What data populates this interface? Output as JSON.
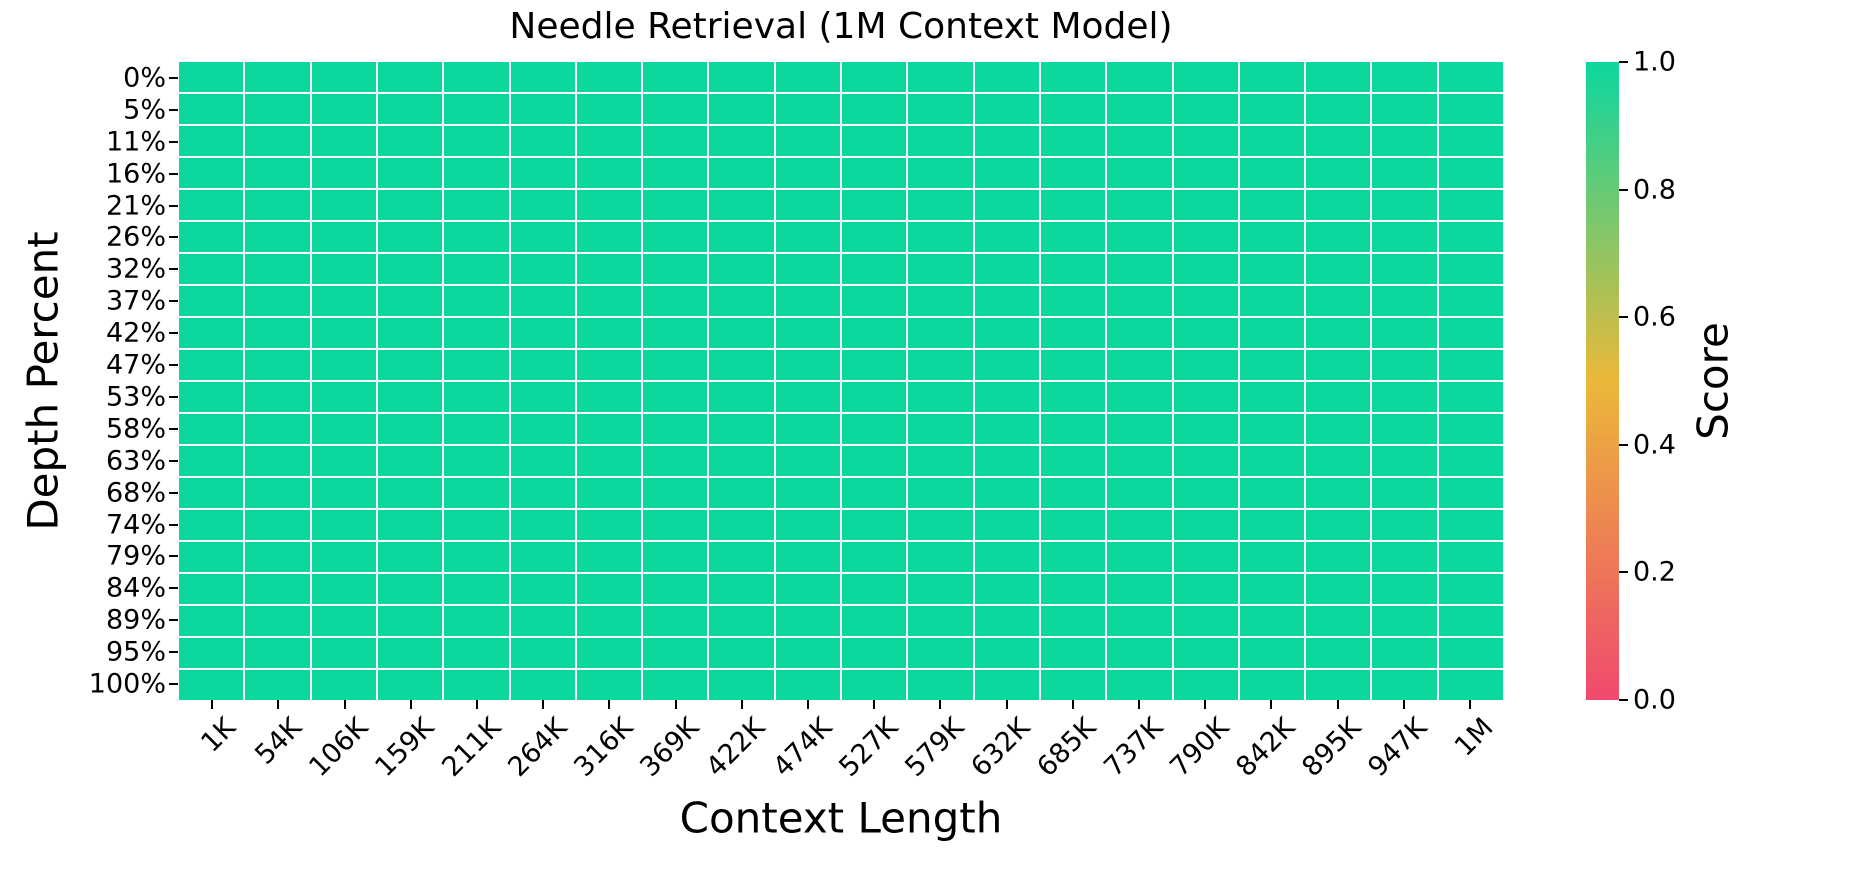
{
  "figure": {
    "background": "#ffffff",
    "text_color": "#000000",
    "grid_line_color": "#ffffff"
  },
  "chart_data": {
    "type": "heatmap",
    "title": "Needle Retrieval (1M Context Model)",
    "xlabel": "Context Length",
    "ylabel": "Depth Percent",
    "x_ticklabels": [
      "1K",
      "54K",
      "106K",
      "159K",
      "211K",
      "264K",
      "316K",
      "369K",
      "422K",
      "474K",
      "527K",
      "579K",
      "632K",
      "685K",
      "737K",
      "790K",
      "842K",
      "895K",
      "947K",
      "1M"
    ],
    "y_ticklabels": [
      "0%",
      "5%",
      "11%",
      "16%",
      "21%",
      "26%",
      "32%",
      "37%",
      "42%",
      "47%",
      "53%",
      "58%",
      "63%",
      "68%",
      "74%",
      "79%",
      "84%",
      "89%",
      "95%",
      "100%"
    ],
    "values": [
      [
        1.0,
        1.0,
        1.0,
        1.0,
        1.0,
        1.0,
        1.0,
        1.0,
        1.0,
        1.0,
        1.0,
        1.0,
        1.0,
        1.0,
        1.0,
        1.0,
        1.0,
        1.0,
        1.0,
        1.0
      ],
      [
        1.0,
        1.0,
        1.0,
        1.0,
        1.0,
        1.0,
        1.0,
        1.0,
        1.0,
        1.0,
        1.0,
        1.0,
        1.0,
        1.0,
        1.0,
        1.0,
        1.0,
        1.0,
        1.0,
        1.0
      ],
      [
        1.0,
        1.0,
        1.0,
        1.0,
        1.0,
        1.0,
        1.0,
        1.0,
        1.0,
        1.0,
        1.0,
        1.0,
        1.0,
        1.0,
        1.0,
        1.0,
        1.0,
        1.0,
        1.0,
        1.0
      ],
      [
        1.0,
        1.0,
        1.0,
        1.0,
        1.0,
        1.0,
        1.0,
        1.0,
        1.0,
        1.0,
        1.0,
        1.0,
        1.0,
        1.0,
        1.0,
        1.0,
        1.0,
        1.0,
        1.0,
        1.0
      ],
      [
        1.0,
        1.0,
        1.0,
        1.0,
        1.0,
        1.0,
        1.0,
        1.0,
        1.0,
        1.0,
        1.0,
        1.0,
        1.0,
        1.0,
        1.0,
        1.0,
        1.0,
        1.0,
        1.0,
        1.0
      ],
      [
        1.0,
        1.0,
        1.0,
        1.0,
        1.0,
        1.0,
        1.0,
        1.0,
        1.0,
        1.0,
        1.0,
        1.0,
        1.0,
        1.0,
        1.0,
        1.0,
        1.0,
        1.0,
        1.0,
        1.0
      ],
      [
        1.0,
        1.0,
        1.0,
        1.0,
        1.0,
        1.0,
        1.0,
        1.0,
        1.0,
        1.0,
        1.0,
        1.0,
        1.0,
        1.0,
        1.0,
        1.0,
        1.0,
        1.0,
        1.0,
        1.0
      ],
      [
        1.0,
        1.0,
        1.0,
        1.0,
        1.0,
        1.0,
        1.0,
        1.0,
        1.0,
        1.0,
        1.0,
        1.0,
        1.0,
        1.0,
        1.0,
        1.0,
        1.0,
        1.0,
        1.0,
        1.0
      ],
      [
        1.0,
        1.0,
        1.0,
        1.0,
        1.0,
        1.0,
        1.0,
        1.0,
        1.0,
        1.0,
        1.0,
        1.0,
        1.0,
        1.0,
        1.0,
        1.0,
        1.0,
        1.0,
        1.0,
        1.0
      ],
      [
        1.0,
        1.0,
        1.0,
        1.0,
        1.0,
        1.0,
        1.0,
        1.0,
        1.0,
        1.0,
        1.0,
        1.0,
        1.0,
        1.0,
        1.0,
        1.0,
        1.0,
        1.0,
        1.0,
        1.0
      ],
      [
        1.0,
        1.0,
        1.0,
        1.0,
        1.0,
        1.0,
        1.0,
        1.0,
        1.0,
        1.0,
        1.0,
        1.0,
        1.0,
        1.0,
        1.0,
        1.0,
        1.0,
        1.0,
        1.0,
        1.0
      ],
      [
        1.0,
        1.0,
        1.0,
        1.0,
        1.0,
        1.0,
        1.0,
        1.0,
        1.0,
        1.0,
        1.0,
        1.0,
        1.0,
        1.0,
        1.0,
        1.0,
        1.0,
        1.0,
        1.0,
        1.0
      ],
      [
        1.0,
        1.0,
        1.0,
        1.0,
        1.0,
        1.0,
        1.0,
        1.0,
        1.0,
        1.0,
        1.0,
        1.0,
        1.0,
        1.0,
        1.0,
        1.0,
        1.0,
        1.0,
        1.0,
        1.0
      ],
      [
        1.0,
        1.0,
        1.0,
        1.0,
        1.0,
        1.0,
        1.0,
        1.0,
        1.0,
        1.0,
        1.0,
        1.0,
        1.0,
        1.0,
        1.0,
        1.0,
        1.0,
        1.0,
        1.0,
        1.0
      ],
      [
        1.0,
        1.0,
        1.0,
        1.0,
        1.0,
        1.0,
        1.0,
        1.0,
        1.0,
        1.0,
        1.0,
        1.0,
        1.0,
        1.0,
        1.0,
        1.0,
        1.0,
        1.0,
        1.0,
        1.0
      ],
      [
        1.0,
        1.0,
        1.0,
        1.0,
        1.0,
        1.0,
        1.0,
        1.0,
        1.0,
        1.0,
        1.0,
        1.0,
        1.0,
        1.0,
        1.0,
        1.0,
        1.0,
        1.0,
        1.0,
        1.0
      ],
      [
        1.0,
        1.0,
        1.0,
        1.0,
        1.0,
        1.0,
        1.0,
        1.0,
        1.0,
        1.0,
        1.0,
        1.0,
        1.0,
        1.0,
        1.0,
        1.0,
        1.0,
        1.0,
        1.0,
        1.0
      ],
      [
        1.0,
        1.0,
        1.0,
        1.0,
        1.0,
        1.0,
        1.0,
        1.0,
        1.0,
        1.0,
        1.0,
        1.0,
        1.0,
        1.0,
        1.0,
        1.0,
        1.0,
        1.0,
        1.0,
        1.0
      ],
      [
        1.0,
        1.0,
        1.0,
        1.0,
        1.0,
        1.0,
        1.0,
        1.0,
        1.0,
        1.0,
        1.0,
        1.0,
        1.0,
        1.0,
        1.0,
        1.0,
        1.0,
        1.0,
        1.0,
        1.0
      ],
      [
        1.0,
        1.0,
        1.0,
        1.0,
        1.0,
        1.0,
        1.0,
        1.0,
        1.0,
        1.0,
        1.0,
        1.0,
        1.0,
        1.0,
        1.0,
        1.0,
        1.0,
        1.0,
        1.0,
        1.0
      ]
    ],
    "value_range": [
      0.0,
      1.0
    ],
    "grid": true,
    "colorbar": {
      "label": "Score",
      "tick_labels": [
        "1.0",
        "0.8",
        "0.6",
        "0.4",
        "0.2",
        "0.0"
      ],
      "tick_values": [
        1.0,
        0.8,
        0.6,
        0.4,
        0.2,
        0.0
      ],
      "colormap_stops": [
        {
          "value": 0.0,
          "color": "#F0496E"
        },
        {
          "value": 0.5,
          "color": "#EBB839"
        },
        {
          "value": 1.0,
          "color": "#0CD79F"
        }
      ],
      "position": "right"
    }
  }
}
